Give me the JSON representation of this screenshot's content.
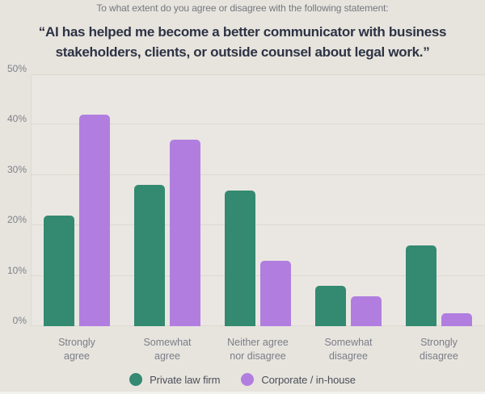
{
  "header": {
    "prompt": "To what extent do you agree or disagree with the following statement:",
    "title": "“AI has helped me become a better communicator with business stakeholders, clients, or outside counsel about legal work.”"
  },
  "chart_data": {
    "type": "bar",
    "categories": [
      "Strongly agree",
      "Somewhat agree",
      "Neither agree nor disagree",
      "Somewhat disagree",
      "Strongly disagree"
    ],
    "categories_lines": [
      [
        "Strongly",
        "agree"
      ],
      [
        "Somewhat",
        "agree"
      ],
      [
        "Neither agree",
        "nor disagree"
      ],
      [
        "Somewhat",
        "disagree"
      ],
      [
        "Strongly",
        "disagree"
      ]
    ],
    "series": [
      {
        "name": "Private law firm",
        "color": "#338a70",
        "values": [
          22,
          28,
          27,
          8,
          16
        ]
      },
      {
        "name": "Corporate / in-house",
        "color": "#b17ee0",
        "values": [
          42,
          37,
          13,
          6,
          2.5
        ]
      }
    ],
    "title": "“AI has helped me become a better communicator with business stakeholders, clients, or outside counsel about legal work.”",
    "xlabel": "",
    "ylabel": "",
    "ylim": [
      0,
      50
    ],
    "yticks": [
      "0%",
      "10%",
      "20%",
      "30%",
      "40%",
      "50%"
    ],
    "grid": true,
    "legend_position": "bottom"
  },
  "colors": {
    "page_background": "#e7e4de",
    "plot_background": "#eae7e2",
    "gridline": "#dcd8d1",
    "title_text": "#2d3344",
    "prompt_text": "#75777e",
    "axis_text": "#7b7e87",
    "legend_text": "#4b4f58",
    "series_private": "#338a70",
    "series_corporate": "#b17ee0"
  }
}
